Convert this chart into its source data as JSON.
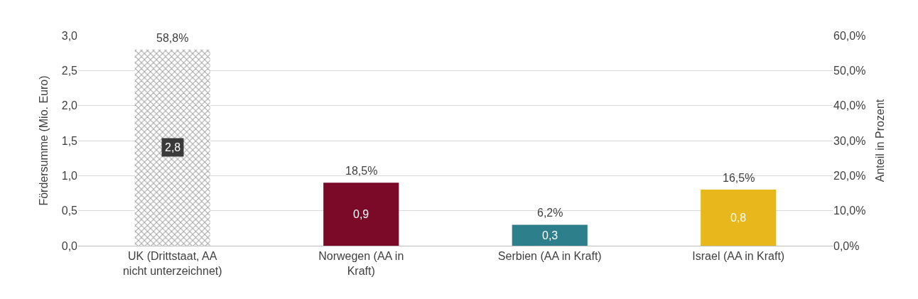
{
  "chart_data": {
    "type": "bar",
    "categories": [
      "UK (Drittstaat, AA nicht unterzeichnet)",
      "Norwegen (AA in Kraft)",
      "Serbien (AA in Kraft)",
      "Israel (AA in Kraft)"
    ],
    "ylabel": "Fördersumme (Mio. Euro)",
    "y2label": "Anteil in Prozent",
    "series": [
      {
        "colors": [
          "#3a3a3a",
          "#7a0a28",
          "#2e7f8c",
          "#e8b71c"
        ],
        "values": [
          2.8,
          0.9,
          0.3,
          0.8
        ],
        "value_labels": [
          "2,8",
          "0,9",
          "0,3",
          "0,8"
        ]
      }
    ],
    "annotations": [
      "58,8%",
      "18,5%",
      "6,2%",
      "16,5%"
    ],
    "ylim": [
      0,
      3
    ],
    "yticks": [
      {
        "value": 0,
        "label": "0,0"
      },
      {
        "value": 0.5,
        "label": "0,5"
      },
      {
        "value": 1,
        "label": "1,0"
      },
      {
        "value": 1.5,
        "label": "1,5"
      },
      {
        "value": 2,
        "label": "2,0"
      },
      {
        "value": 2.5,
        "label": "2,5"
      },
      {
        "value": 3,
        "label": "3,0"
      }
    ],
    "y2lim": [
      0,
      60
    ],
    "y2ticks": [
      {
        "value": 0,
        "label": "0,0%"
      },
      {
        "value": 10,
        "label": "10,0%"
      },
      {
        "value": 20,
        "label": "20,0%"
      },
      {
        "value": 30,
        "label": "30,0%"
      },
      {
        "value": 40,
        "label": "40,0%"
      },
      {
        "value": 50,
        "label": "50,0%"
      },
      {
        "value": 60,
        "label": "60,0%"
      }
    ],
    "grid": "y"
  }
}
